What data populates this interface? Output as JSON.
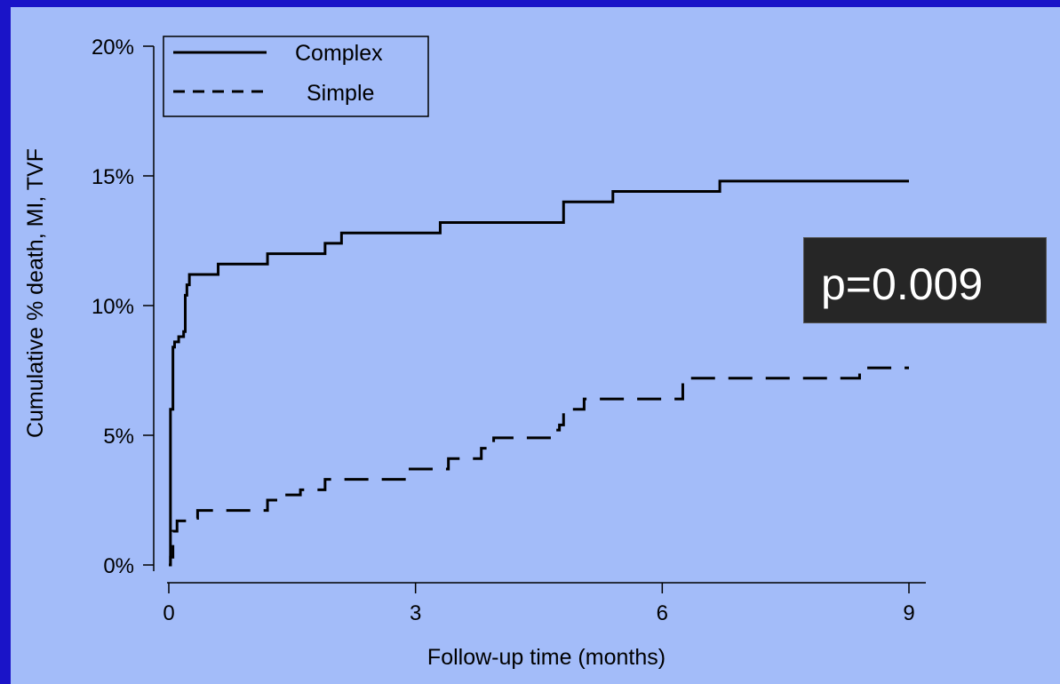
{
  "colors": {
    "border": "#1a14c8",
    "background": "#a3bcf9",
    "lines": "#000000",
    "annotation_box": "#262626",
    "annotation_text": "#ffffff"
  },
  "chart_data": {
    "type": "line",
    "title": "",
    "xlabel": "Follow-up time (months)",
    "ylabel": "Cumulative % death, MI, TVF",
    "xlim": [
      0,
      9
    ],
    "ylim": [
      0,
      20
    ],
    "xticks": [
      0,
      3,
      6,
      9
    ],
    "xtick_labels": [
      "0",
      "3",
      "6",
      "9"
    ],
    "yticks": [
      0,
      5,
      10,
      15,
      20
    ],
    "ytick_labels": [
      "0%",
      "5%",
      "10%",
      "15%",
      "20%"
    ],
    "grid": false,
    "legend_position": "top-left",
    "step": true,
    "annotation": "p=0.009",
    "series": [
      {
        "name": "Complex",
        "style": "solid",
        "x": [
          0,
          0.02,
          0.05,
          0.07,
          0.12,
          0.18,
          0.2,
          0.22,
          0.25,
          0.6,
          1.2,
          1.9,
          2.1,
          3.3,
          4.8,
          5.4,
          6.7,
          9.0
        ],
        "y": [
          0,
          6.0,
          8.4,
          8.6,
          8.8,
          9.0,
          10.4,
          10.8,
          11.2,
          11.6,
          12.0,
          12.4,
          12.8,
          13.2,
          14.0,
          14.4,
          14.8,
          14.8
        ]
      },
      {
        "name": "Simple",
        "style": "dashed",
        "x": [
          0,
          0.02,
          0.05,
          0.1,
          0.25,
          0.35,
          1.2,
          1.4,
          1.6,
          1.9,
          2.9,
          3.4,
          3.8,
          3.95,
          4.7,
          4.75,
          4.8,
          5.05,
          6.25,
          8.4,
          9.0
        ],
        "y": [
          0,
          0.3,
          1.3,
          1.7,
          1.8,
          2.1,
          2.5,
          2.7,
          2.9,
          3.3,
          3.7,
          4.1,
          4.5,
          4.9,
          5.2,
          5.4,
          6.0,
          6.4,
          7.2,
          7.6,
          7.6
        ]
      }
    ]
  }
}
